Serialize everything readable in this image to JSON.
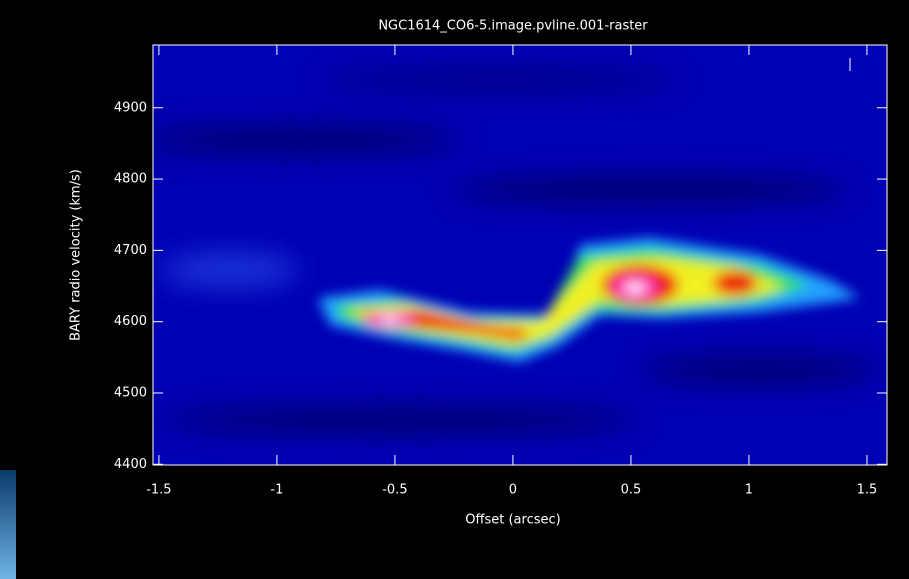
{
  "chart_data": {
    "type": "raster",
    "title": "NGC1614_CO6-5.image.pvline.001-raster",
    "x_label": "Offset (arcsec)",
    "y_label": "BARY radio velocity  (km/s)",
    "xlim": [
      -1.525,
      1.585
    ],
    "ylim": [
      4399,
      4988
    ],
    "xticks": [
      -1.5,
      -1,
      -0.5,
      0,
      0.5,
      1,
      1.5
    ],
    "yticks": [
      4400,
      4500,
      4600,
      4700,
      4800,
      4900
    ]
  }
}
